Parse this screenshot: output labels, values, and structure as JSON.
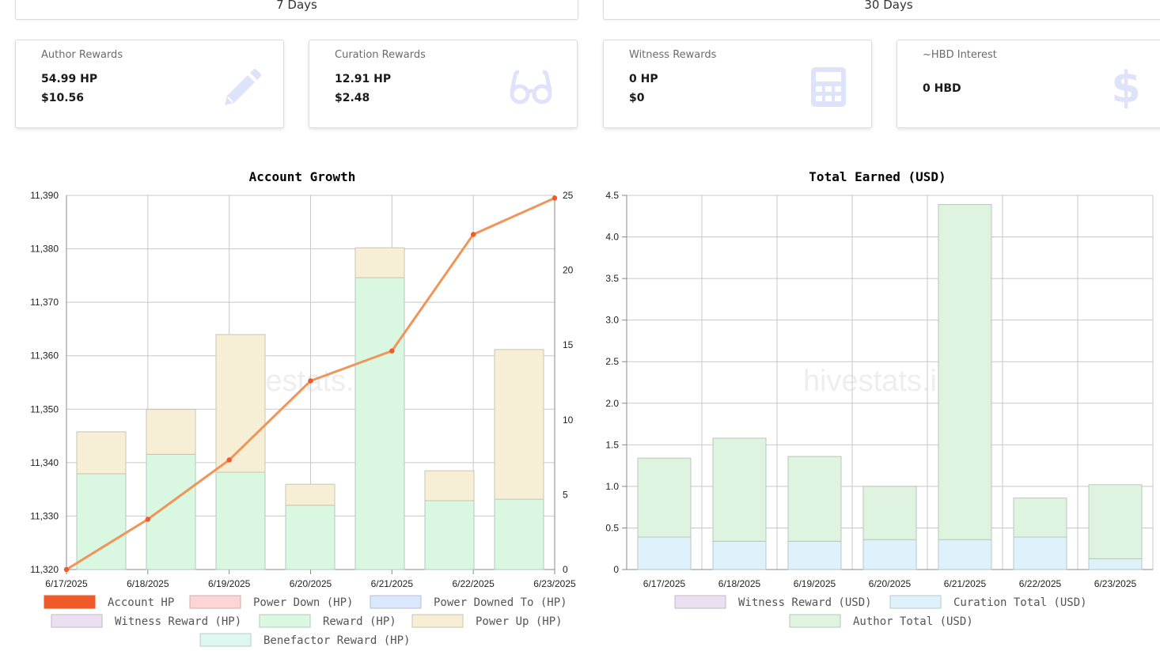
{
  "tabs": [
    {
      "label": "7 Days"
    },
    {
      "label": "30 Days"
    }
  ],
  "cards": [
    {
      "label": "Author Rewards",
      "v1": "54.99 HP",
      "v2": "$10.56",
      "icon": "pencil-icon"
    },
    {
      "label": "Curation Rewards",
      "v1": "12.91 HP",
      "v2": "$2.48",
      "icon": "glasses-icon"
    },
    {
      "label": "Witness Rewards",
      "v1": "0 HP",
      "v2": "$0",
      "icon": "calculator-icon"
    },
    {
      "label": "~HBD Interest",
      "v1": "0 HBD",
      "icon": "dollar-icon"
    }
  ],
  "watermark": "hivestats.io",
  "colors": {
    "account_hp": "#f05a28",
    "power_down": "#ffd4d6",
    "power_downed_to": "#dbe6ff",
    "witness": "#ebe0f2",
    "reward": "#d9f7e1",
    "power_up": "#f6efd6",
    "benefactor": "#dff7f3",
    "curation_usd": "#dff1fa",
    "author_usd": "#dff4e0",
    "line": "#f0955a",
    "line_dot": "#f05a28"
  },
  "chart_data": [
    {
      "type": "bar",
      "title": "Account Growth",
      "categories": [
        "6/17/2025",
        "6/18/2025",
        "6/19/2025",
        "6/20/2025",
        "6/21/2025",
        "6/22/2025",
        "6/23/2025"
      ],
      "ylim_left": [
        11320,
        11390
      ],
      "yticks_left": [
        "11,320",
        "11,330",
        "11,340",
        "11,350",
        "11,360",
        "11,370",
        "11,380",
        "11,390"
      ],
      "ylim_right": [
        0,
        25
      ],
      "yticks_right": [
        "0",
        "5",
        "10",
        "15",
        "20",
        "25"
      ],
      "grid": true,
      "legend_position": "bottom",
      "series": [
        {
          "name": "Account HP",
          "type": "line",
          "axis": "left",
          "values": [
            11320,
            11329.4,
            11340.5,
            11355.3,
            11360.9,
            11382.7,
            11389.5
          ]
        },
        {
          "name": "Power Down (HP)",
          "type": "bar",
          "axis": "right",
          "stack": "a",
          "values": [
            0,
            0,
            0,
            0,
            0,
            0,
            0
          ]
        },
        {
          "name": "Power Downed To (HP)",
          "type": "bar",
          "axis": "right",
          "stack": "a",
          "values": [
            0,
            0,
            0,
            0,
            0,
            0,
            0
          ]
        },
        {
          "name": "Witness Reward (HP)",
          "type": "bar",
          "axis": "right",
          "stack": "a",
          "values": [
            0,
            0,
            0,
            0,
            0,
            0,
            0
          ]
        },
        {
          "name": "Reward (HP)",
          "type": "bar",
          "axis": "right",
          "stack": "a",
          "values": [
            6.4,
            7.7,
            6.5,
            4.3,
            19.5,
            4.6,
            4.7
          ]
        },
        {
          "name": "Power Up (HP)",
          "type": "bar",
          "axis": "right",
          "stack": "a",
          "values": [
            2.8,
            3.0,
            9.2,
            1.4,
            2.0,
            2.0,
            10.0
          ]
        },
        {
          "name": "Benefactor Reward (HP)",
          "type": "bar",
          "axis": "right",
          "stack": "a",
          "values": [
            0,
            0,
            0,
            0,
            0,
            0,
            0
          ]
        }
      ]
    },
    {
      "type": "bar",
      "title": "Total Earned (USD)",
      "categories": [
        "6/17/2025",
        "6/18/2025",
        "6/19/2025",
        "6/20/2025",
        "6/21/2025",
        "6/22/2025",
        "6/23/2025"
      ],
      "ylim": [
        0,
        4.5
      ],
      "yticks": [
        "0",
        "0.5",
        "1.0",
        "1.5",
        "2.0",
        "2.5",
        "3.0",
        "3.5",
        "4.0",
        "4.5"
      ],
      "grid": true,
      "legend_position": "bottom",
      "series": [
        {
          "name": "Witness Reward (USD)",
          "values": [
            0,
            0,
            0,
            0,
            0,
            0,
            0
          ]
        },
        {
          "name": "Curation Total (USD)",
          "values": [
            0.39,
            0.34,
            0.34,
            0.36,
            0.36,
            0.39,
            0.13
          ]
        },
        {
          "name": "Author Total (USD)",
          "values": [
            0.95,
            1.24,
            1.02,
            0.64,
            4.03,
            0.47,
            0.89
          ]
        }
      ]
    }
  ]
}
